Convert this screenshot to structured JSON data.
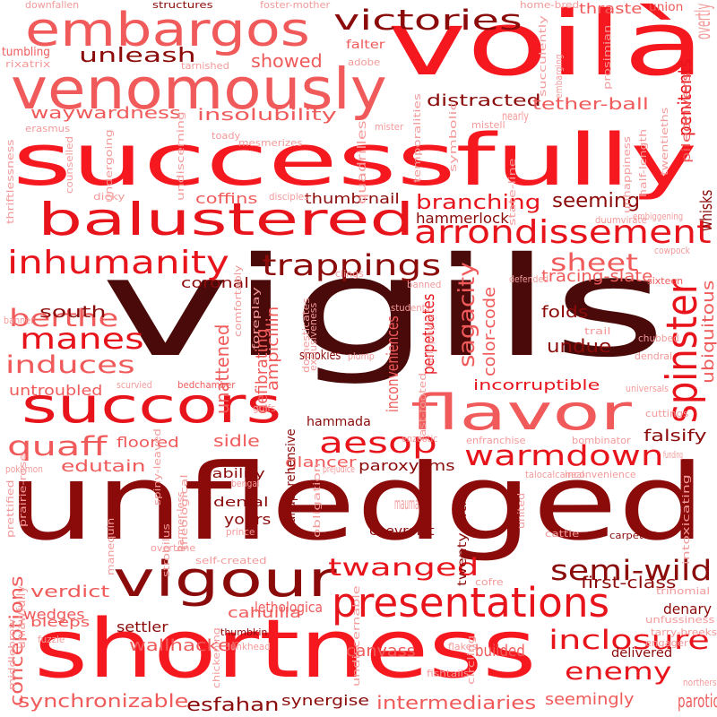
{
  "palette": {
    "dark": "#4a0a0a",
    "maroon": "#8b0a0a",
    "red": "#e8141c",
    "bright": "#f5191f",
    "salmon": "#f05a5a",
    "pink": "#f39a9a"
  },
  "words": [
    {
      "text": "vigils",
      "color": "dark"
    },
    {
      "text": "unfledged",
      "color": "maroon"
    },
    {
      "text": "successfully",
      "color": "bright"
    },
    {
      "text": "shortness",
      "color": "bright"
    },
    {
      "text": "voilà",
      "color": "bright"
    },
    {
      "text": "venomously",
      "color": "salmon"
    },
    {
      "text": "balustered",
      "color": "red"
    },
    {
      "text": "succors",
      "color": "red"
    },
    {
      "text": "flavor",
      "color": "salmon"
    },
    {
      "text": "embargos",
      "color": "salmon"
    },
    {
      "text": "vigour",
      "color": "maroon"
    },
    {
      "text": "presentations",
      "color": "red"
    },
    {
      "text": "arrondissement",
      "color": "red"
    },
    {
      "text": "victories",
      "color": "maroon"
    },
    {
      "text": "inhumanity",
      "color": "red"
    },
    {
      "text": "trappings",
      "color": "maroon"
    },
    {
      "text": "spinster",
      "color": "red"
    },
    {
      "text": "warmdown",
      "color": "red"
    },
    {
      "text": "aesop",
      "color": "red"
    },
    {
      "text": "manes",
      "color": "red"
    },
    {
      "text": "induces",
      "color": "salmon"
    },
    {
      "text": "berthe",
      "color": "salmon"
    },
    {
      "text": "quaff",
      "color": "salmon"
    },
    {
      "text": "semi-wild",
      "color": "maroon"
    },
    {
      "text": "twanged",
      "color": "red"
    },
    {
      "text": "inclosure",
      "color": "red"
    },
    {
      "text": "enemy",
      "color": "red"
    },
    {
      "text": "sheet",
      "color": "salmon"
    },
    {
      "text": "unleash",
      "color": "maroon"
    },
    {
      "text": "waywardness",
      "color": "salmon"
    },
    {
      "text": "insolubility",
      "color": "salmon"
    },
    {
      "text": "showed",
      "color": "salmon"
    },
    {
      "text": "distracted",
      "color": "maroon"
    },
    {
      "text": "tether-ball",
      "color": "salmon"
    },
    {
      "text": "branching",
      "color": "red"
    },
    {
      "text": "seeming",
      "color": "maroon"
    },
    {
      "text": "hammerlock",
      "color": "maroon"
    },
    {
      "text": "thumb-nail",
      "color": "maroon"
    },
    {
      "text": "coffins",
      "color": "salmon"
    },
    {
      "text": "sagacity",
      "color": "salmon"
    },
    {
      "text": "penitents",
      "color": "red"
    },
    {
      "text": "ubiquitous",
      "color": "salmon"
    },
    {
      "text": "tracing-slate",
      "color": "salmon"
    },
    {
      "text": "south",
      "color": "maroon"
    },
    {
      "text": "coronal",
      "color": "maroon"
    },
    {
      "text": "undue",
      "color": "maroon"
    },
    {
      "text": "incorruptible",
      "color": "red"
    },
    {
      "text": "perpetuates",
      "color": "red"
    },
    {
      "text": "color-code",
      "color": "salmon"
    },
    {
      "text": "folds",
      "color": "maroon"
    },
    {
      "text": "untroubled",
      "color": "salmon"
    },
    {
      "text": "sidle",
      "color": "salmon"
    },
    {
      "text": "edutain",
      "color": "salmon"
    },
    {
      "text": "floored",
      "color": "salmon"
    },
    {
      "text": "glancer",
      "color": "salmon"
    },
    {
      "text": "paroxysms",
      "color": "maroon"
    },
    {
      "text": "hammada",
      "color": "maroon"
    },
    {
      "text": "falsify",
      "color": "maroon"
    },
    {
      "text": "inconveniences",
      "color": "salmon"
    },
    {
      "text": "verdict",
      "color": "salmon"
    },
    {
      "text": "wedges",
      "color": "salmon"
    },
    {
      "text": "bleeps",
      "color": "salmon"
    },
    {
      "text": "settler",
      "color": "maroon"
    },
    {
      "text": "wallhacker",
      "color": "salmon"
    },
    {
      "text": "cahuilla",
      "color": "salmon"
    },
    {
      "text": "lethologica",
      "color": "salmon"
    },
    {
      "text": "canvass",
      "color": "salmon"
    },
    {
      "text": "builded",
      "color": "salmon"
    },
    {
      "text": "delivered",
      "color": "maroon"
    },
    {
      "text": "denary",
      "color": "maroon"
    },
    {
      "text": "first-class",
      "color": "maroon"
    },
    {
      "text": "synchronizable",
      "color": "salmon"
    },
    {
      "text": "esfahan",
      "color": "maroon"
    },
    {
      "text": "synergise",
      "color": "maroon"
    },
    {
      "text": "intermediaries",
      "color": "salmon"
    },
    {
      "text": "seemingly",
      "color": "salmon"
    },
    {
      "text": "parotid",
      "color": "salmon"
    },
    {
      "text": "conceptions",
      "color": "salmon"
    },
    {
      "text": "yours",
      "color": "maroon"
    },
    {
      "text": "denial",
      "color": "maroon"
    },
    {
      "text": "chevrolet",
      "color": "maroon"
    },
    {
      "text": "liability",
      "color": "maroon"
    },
    {
      "text": "unattened",
      "color": "salmon"
    },
    {
      "text": "defibrating",
      "color": "salmon"
    },
    {
      "text": "ampicillin",
      "color": "salmon"
    },
    {
      "text": "structures",
      "color": "maroon"
    },
    {
      "text": "foster-mother",
      "color": "pink"
    },
    {
      "text": "home-bred",
      "color": "pink"
    },
    {
      "text": "thraste",
      "color": "salmon"
    },
    {
      "text": "union",
      "color": "salmon"
    },
    {
      "text": "overtly",
      "color": "pink"
    },
    {
      "text": "downfallen",
      "color": "pink"
    },
    {
      "text": "tumbling",
      "color": "salmon"
    },
    {
      "text": "rixatrix",
      "color": "pink"
    },
    {
      "text": "tarnished",
      "color": "pink"
    },
    {
      "text": "adobe",
      "color": "pink"
    },
    {
      "text": "falter",
      "color": "salmon"
    },
    {
      "text": "nearly",
      "color": "pink"
    },
    {
      "text": "mistell",
      "color": "pink"
    },
    {
      "text": "erasmus",
      "color": "pink"
    },
    {
      "text": "mister",
      "color": "pink"
    },
    {
      "text": "toady",
      "color": "pink"
    },
    {
      "text": "mesmerizes",
      "color": "pink"
    },
    {
      "text": "dicky",
      "color": "pink"
    },
    {
      "text": "disciples",
      "color": "pink"
    },
    {
      "text": "embiggening",
      "color": "pink"
    },
    {
      "text": "duumvirate",
      "color": "pink"
    },
    {
      "text": "whisks",
      "color": "maroon"
    },
    {
      "text": "cowpock",
      "color": "pink"
    },
    {
      "text": "defended",
      "color": "pink"
    },
    {
      "text": "clings",
      "color": "pink"
    },
    {
      "text": "banned",
      "color": "pink"
    },
    {
      "text": "sixteen",
      "color": "salmon"
    },
    {
      "text": "students",
      "color": "pink"
    },
    {
      "text": "trail",
      "color": "pink"
    },
    {
      "text": "chubbed",
      "color": "pink"
    },
    {
      "text": "dendral",
      "color": "pink"
    },
    {
      "text": "plump",
      "color": "pink"
    },
    {
      "text": "smokies",
      "color": "maroon"
    },
    {
      "text": "bedchamber",
      "color": "salmon"
    },
    {
      "text": "scurvied",
      "color": "pink"
    },
    {
      "text": "universals",
      "color": "pink"
    },
    {
      "text": "cuttings",
      "color": "pink"
    },
    {
      "text": "gulfs",
      "color": "pink"
    },
    {
      "text": "enzootic",
      "color": "pink"
    },
    {
      "text": "enfranchise",
      "color": "pink"
    },
    {
      "text": "bombinator",
      "color": "pink"
    },
    {
      "text": "funding",
      "color": "pink"
    },
    {
      "text": "talocalcaneal",
      "color": "pink"
    },
    {
      "text": "inconvenience",
      "color": "pink"
    },
    {
      "text": "prejudice",
      "color": "pink"
    },
    {
      "text": "pokémon",
      "color": "pink"
    },
    {
      "text": "bengal",
      "color": "pink"
    },
    {
      "text": "prince",
      "color": "pink"
    },
    {
      "text": "overtone",
      "color": "pink"
    },
    {
      "text": "self-created",
      "color": "pink"
    },
    {
      "text": "cattle",
      "color": "pink"
    },
    {
      "text": "carpeted",
      "color": "maroon"
    },
    {
      "text": "trinomial",
      "color": "pink"
    },
    {
      "text": "fuzzle",
      "color": "pink"
    },
    {
      "text": "thumbkin",
      "color": "maroon"
    },
    {
      "text": "lunkhead",
      "color": "pink"
    },
    {
      "text": "flakes",
      "color": "pink"
    },
    {
      "text": "fishtails",
      "color": "pink"
    },
    {
      "text": "unfussiness",
      "color": "pink"
    },
    {
      "text": "tarry-breeks",
      "color": "pink"
    },
    {
      "text": "engager",
      "color": "pink"
    },
    {
      "text": "northers",
      "color": "pink"
    },
    {
      "text": "cofre",
      "color": "pink"
    },
    {
      "text": "banner",
      "color": "pink"
    },
    {
      "text": "counselled",
      "color": "pink"
    },
    {
      "text": "undergoing",
      "color": "pink"
    },
    {
      "text": "undiscerning",
      "color": "pink"
    },
    {
      "text": "quadrilles",
      "color": "pink"
    },
    {
      "text": "temporalities",
      "color": "pink"
    },
    {
      "text": "symbolic",
      "color": "pink"
    },
    {
      "text": "succulently",
      "color": "pink"
    },
    {
      "text": "embarging",
      "color": "pink"
    },
    {
      "text": "prosimian",
      "color": "pink"
    },
    {
      "text": "piledrivers",
      "color": "salmon"
    },
    {
      "text": "state-line",
      "color": "pink"
    },
    {
      "text": "unhappiness",
      "color": "pink"
    },
    {
      "text": "half-length",
      "color": "pink"
    },
    {
      "text": "twentieths",
      "color": "pink"
    },
    {
      "text": "thriftlessness",
      "color": "pink"
    },
    {
      "text": "comfortably",
      "color": "pink"
    },
    {
      "text": "foreplay",
      "color": "pink"
    },
    {
      "text": "domesticates",
      "color": "pink"
    },
    {
      "text": "exclusiveness",
      "color": "pink"
    },
    {
      "text": "fast-footed",
      "color": "pink"
    },
    {
      "text": "halophyte",
      "color": "pink"
    },
    {
      "text": "spiny-leaved",
      "color": "pink"
    },
    {
      "text": "prairie-rose",
      "color": "pink"
    },
    {
      "text": "prettified",
      "color": "pink"
    },
    {
      "text": "manequin",
      "color": "pink"
    },
    {
      "text": "theological",
      "color": "pink"
    },
    {
      "text": "harmer-less",
      "color": "pink"
    },
    {
      "text": "strobilus",
      "color": "pink"
    },
    {
      "text": "obligation",
      "color": "pink"
    },
    {
      "text": "unapprehensive",
      "color": "maroon"
    },
    {
      "text": "mauma",
      "color": "pink"
    },
    {
      "text": "twenty-fifth",
      "color": "maroon"
    },
    {
      "text": "united",
      "color": "pink"
    },
    {
      "text": "intoxicating",
      "color": "pink"
    },
    {
      "text": "middlebrow",
      "color": "pink"
    },
    {
      "text": "unlawfully",
      "color": "pink"
    },
    {
      "text": "chickening",
      "color": "pink"
    },
    {
      "text": "undiscernable",
      "color": "pink"
    },
    {
      "text": "circling",
      "color": "pink"
    }
  ]
}
